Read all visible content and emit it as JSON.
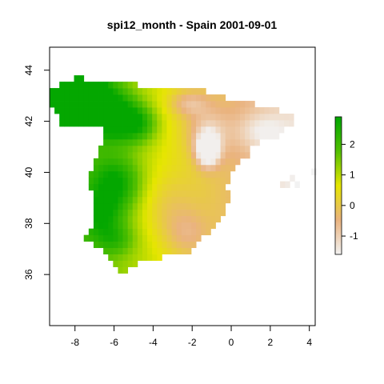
{
  "chart_data": {
    "type": "heatmap",
    "title": "spi12_month - Spain 2001-09-01",
    "xlabel": "",
    "ylabel": "",
    "x_ticks": [
      -8,
      -6,
      -4,
      -2,
      0,
      2,
      4
    ],
    "y_ticks": [
      36,
      38,
      40,
      42,
      44
    ],
    "xlim": [
      -9.3,
      4.3
    ],
    "ylim": [
      34.0,
      44.9
    ],
    "colorbar": {
      "ticks": [
        -1,
        0,
        1,
        2
      ],
      "range": [
        -1.6,
        2.9
      ],
      "colors": [
        "#f2f2f2",
        "#eab37f",
        "#e6e600",
        "#52bf00",
        "#00a600"
      ]
    },
    "grid": false,
    "legend": "right"
  }
}
